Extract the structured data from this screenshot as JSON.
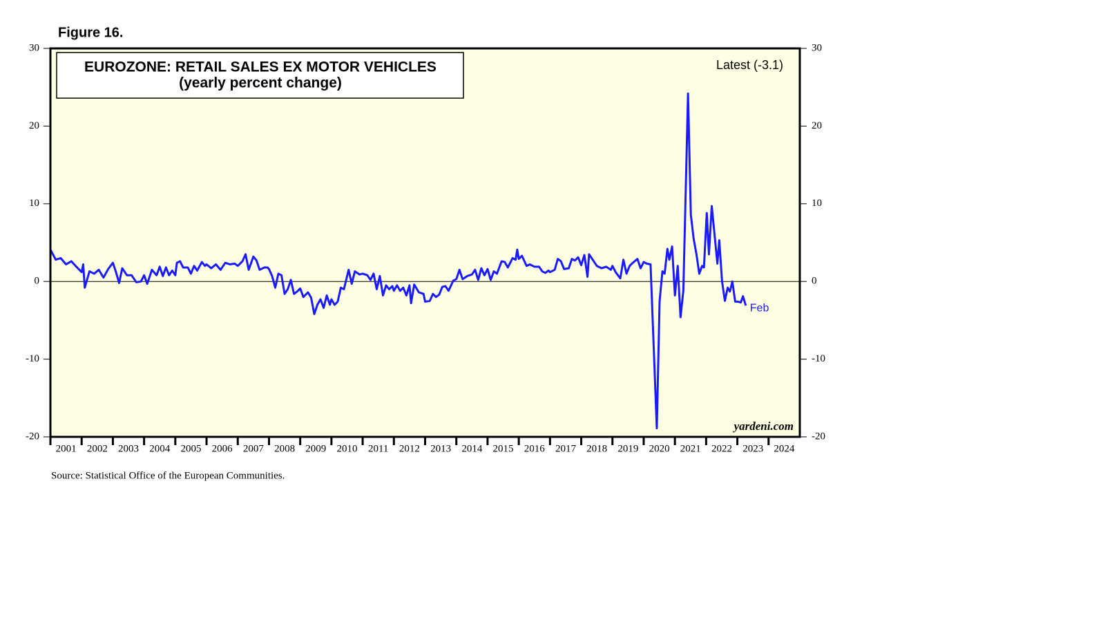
{
  "chart_data": {
    "type": "line",
    "figure_label": "Figure 16.",
    "title": "EUROZONE: RETAIL SALES EX MOTOR VEHICLES",
    "subtitle": "(yearly percent change)",
    "latest_label": "Latest (-3.1)",
    "end_label": "Feb",
    "watermark": "yardeni.com",
    "source": "Source: Statistical Office of the European Communities.",
    "x": [
      2001.0,
      2001.17,
      2001.33,
      2001.5,
      2001.67,
      2001.83,
      2002.0,
      2002.05,
      2002.1,
      2002.25,
      2002.4,
      2002.55,
      2002.7,
      2002.85,
      2003.0,
      2003.1,
      2003.2,
      2003.3,
      2003.45,
      2003.6,
      2003.75,
      2003.9,
      2004.0,
      2004.1,
      2004.25,
      2004.4,
      2004.5,
      2004.6,
      2004.7,
      2004.8,
      2004.9,
      2005.0,
      2005.05,
      2005.15,
      2005.25,
      2005.4,
      2005.5,
      2005.6,
      2005.7,
      2005.85,
      2005.95,
      2006.0,
      2006.15,
      2006.3,
      2006.45,
      2006.6,
      2006.75,
      2006.9,
      2007.0,
      2007.15,
      2007.25,
      2007.35,
      2007.5,
      2007.6,
      2007.7,
      2007.85,
      2007.95,
      2008.0,
      2008.1,
      2008.2,
      2008.3,
      2008.4,
      2008.5,
      2008.6,
      2008.7,
      2008.8,
      2008.9,
      2009.0,
      2009.1,
      2009.25,
      2009.35,
      2009.45,
      2009.55,
      2009.65,
      2009.75,
      2009.85,
      2009.95,
      2010.0,
      2010.1,
      2010.2,
      2010.3,
      2010.4,
      2010.55,
      2010.65,
      2010.75,
      2010.9,
      2011.0,
      2011.15,
      2011.25,
      2011.35,
      2011.45,
      2011.55,
      2011.65,
      2011.75,
      2011.85,
      2011.95,
      2012.0,
      2012.1,
      2012.2,
      2012.3,
      2012.4,
      2012.5,
      2012.55,
      2012.65,
      2012.8,
      2012.95,
      2013.0,
      2013.15,
      2013.25,
      2013.35,
      2013.45,
      2013.55,
      2013.65,
      2013.75,
      2013.9,
      2014.0,
      2014.1,
      2014.2,
      2014.35,
      2014.5,
      2014.6,
      2014.7,
      2014.8,
      2014.9,
      2015.0,
      2015.1,
      2015.2,
      2015.3,
      2015.45,
      2015.55,
      2015.65,
      2015.8,
      2015.9,
      2015.95,
      2016.0,
      2016.1,
      2016.25,
      2016.35,
      2016.5,
      2016.65,
      2016.75,
      2016.85,
      2016.95,
      2017.0,
      2017.15,
      2017.25,
      2017.35,
      2017.45,
      2017.6,
      2017.7,
      2017.8,
      2017.9,
      2018.0,
      2018.1,
      2018.2,
      2018.25,
      2018.35,
      2018.5,
      2018.65,
      2018.8,
      2018.95,
      2019.0,
      2019.1,
      2019.25,
      2019.35,
      2019.45,
      2019.55,
      2019.65,
      2019.8,
      2019.9,
      2020.0,
      2020.1,
      2020.22,
      2020.42,
      2020.51,
      2020.6,
      2020.67,
      2020.76,
      2020.82,
      2020.91,
      2021.0,
      2021.09,
      2021.18,
      2021.27,
      2021.42,
      2021.51,
      2021.6,
      2021.69,
      2021.78,
      2021.87,
      2021.93,
      2022.02,
      2022.09,
      2022.18,
      2022.27,
      2022.36,
      2022.42,
      2022.51,
      2022.6,
      2022.69,
      2022.76,
      2022.84,
      2022.93,
      2023.02,
      2023.11,
      2023.18,
      2023.27
    ],
    "series": [
      {
        "name": "Retail sales ex motor vehicles",
        "color": "#1a1aff",
        "values": [
          4.1,
          2.8,
          3.0,
          2.2,
          2.6,
          1.9,
          1.2,
          2.2,
          -0.8,
          1.3,
          1.0,
          1.5,
          0.5,
          1.6,
          2.4,
          1.2,
          -0.2,
          1.7,
          0.8,
          0.8,
          -0.1,
          0.0,
          0.8,
          -0.3,
          1.5,
          0.8,
          1.9,
          0.7,
          1.8,
          0.8,
          1.4,
          0.8,
          2.4,
          2.6,
          1.8,
          1.8,
          1.0,
          2.0,
          1.4,
          2.5,
          2.0,
          2.2,
          1.7,
          2.2,
          1.5,
          2.4,
          2.2,
          2.3,
          2.0,
          2.6,
          3.5,
          1.5,
          3.2,
          2.7,
          1.5,
          1.8,
          1.8,
          1.6,
          0.7,
          -0.8,
          1.0,
          0.8,
          -1.6,
          -1.0,
          0.2,
          -1.6,
          -1.3,
          -0.9,
          -2.0,
          -1.4,
          -2.1,
          -4.2,
          -3.0,
          -2.3,
          -3.4,
          -1.8,
          -3.0,
          -2.3,
          -3.0,
          -2.6,
          -0.8,
          -1.0,
          1.5,
          -0.3,
          1.3,
          0.9,
          1.0,
          0.8,
          0.2,
          1.0,
          -1.0,
          0.7,
          -1.8,
          -0.5,
          -1.0,
          -0.6,
          -1.2,
          -0.5,
          -1.2,
          -0.8,
          -1.8,
          -0.5,
          -2.8,
          -0.4,
          -1.4,
          -1.6,
          -2.6,
          -2.5,
          -1.6,
          -2.0,
          -1.7,
          -0.7,
          -0.6,
          -1.2,
          0.1,
          0.3,
          1.5,
          0.3,
          0.7,
          0.9,
          1.5,
          0.2,
          1.7,
          0.8,
          1.6,
          0.2,
          1.3,
          1.0,
          2.6,
          2.5,
          1.8,
          3.0,
          2.8,
          4.1,
          2.9,
          3.3,
          2.0,
          2.2,
          1.9,
          1.9,
          1.3,
          1.1,
          1.4,
          1.2,
          1.5,
          2.9,
          2.6,
          1.6,
          1.7,
          2.9,
          2.7,
          3.1,
          2.1,
          3.4,
          0.6,
          3.5,
          2.9,
          2.0,
          1.7,
          1.9,
          1.5,
          2.0,
          1.2,
          0.4,
          2.8,
          1.0,
          2.0,
          2.4,
          2.9,
          1.7,
          2.5,
          2.3,
          2.2,
          -18.9,
          -2.5,
          1.3,
          1.0,
          4.2,
          2.8,
          4.5,
          -1.8,
          2.0,
          -4.6,
          -1.2,
          24.2,
          8.6,
          5.5,
          3.5,
          1.0,
          2.0,
          1.8,
          8.8,
          3.5,
          9.7,
          6.0,
          2.3,
          5.3,
          0.0,
          -2.5,
          -0.8,
          -1.3,
          0.0,
          -2.6,
          -2.6,
          -2.7,
          -1.9,
          -3.1
        ]
      }
    ],
    "xlim": [
      2001,
      2025
    ],
    "xticks": [
      {
        "value": 2001.5,
        "label": "2001"
      },
      {
        "value": 2002.5,
        "label": "2002"
      },
      {
        "value": 2003.5,
        "label": "2003"
      },
      {
        "value": 2004.5,
        "label": "2004"
      },
      {
        "value": 2005.5,
        "label": "2005"
      },
      {
        "value": 2006.5,
        "label": "2006"
      },
      {
        "value": 2007.5,
        "label": "2007"
      },
      {
        "value": 2008.5,
        "label": "2008"
      },
      {
        "value": 2009.5,
        "label": "2009"
      },
      {
        "value": 2010.5,
        "label": "2010"
      },
      {
        "value": 2011.5,
        "label": "2011"
      },
      {
        "value": 2012.5,
        "label": "2012"
      },
      {
        "value": 2013.5,
        "label": "2013"
      },
      {
        "value": 2014.5,
        "label": "2014"
      },
      {
        "value": 2015.5,
        "label": "2015"
      },
      {
        "value": 2016.5,
        "label": "2016"
      },
      {
        "value": 2017.5,
        "label": "2017"
      },
      {
        "value": 2018.5,
        "label": "2018"
      },
      {
        "value": 2019.5,
        "label": "2019"
      },
      {
        "value": 2020.5,
        "label": "2020"
      },
      {
        "value": 2021.5,
        "label": "2021"
      },
      {
        "value": 2022.5,
        "label": "2022"
      },
      {
        "value": 2023.5,
        "label": "2023"
      },
      {
        "value": 2024.5,
        "label": "2024"
      }
    ],
    "ylim": [
      -20,
      30
    ],
    "yticks": [
      -20,
      -10,
      0,
      10,
      20,
      30
    ],
    "background": "#ffffe4",
    "grid": false
  }
}
